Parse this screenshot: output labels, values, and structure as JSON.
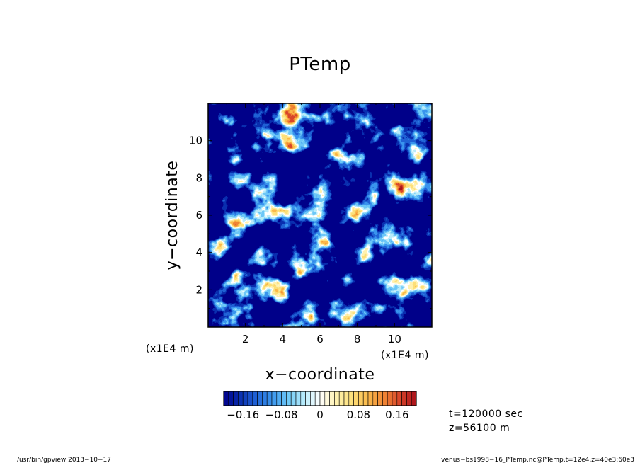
{
  "chart_data": {
    "type": "heatmap",
    "title": "PTemp",
    "xlabel": "x−coordinate",
    "ylabel": "y−coordinate",
    "x_unit": "(x1E4 m)",
    "y_unit": "(x1E4 m)",
    "xlim": [
      0,
      12
    ],
    "ylim": [
      0,
      12
    ],
    "x_ticks": [
      2,
      4,
      6,
      8,
      10
    ],
    "y_ticks": [
      2,
      4,
      6,
      8,
      10
    ],
    "x_tick_labels": [
      "2",
      "4",
      "6",
      "8",
      "10"
    ],
    "y_tick_labels": [
      "2",
      "4",
      "6",
      "8",
      "10"
    ],
    "colorbar": {
      "range": [
        -0.2,
        0.2
      ],
      "ticks": [
        -0.16,
        -0.08,
        0,
        0.08,
        0.16
      ],
      "tick_labels": [
        "−0.16",
        "−0.08",
        "0",
        "0.08",
        "0.16"
      ],
      "colors": [
        "#00008a",
        "#0a2fb0",
        "#1f62d6",
        "#3a95ee",
        "#6cc8f7",
        "#b8ecfb",
        "#ffffff",
        "#fff2b0",
        "#fde07a",
        "#fbb94a",
        "#f08534",
        "#d8452a",
        "#a80f1a"
      ]
    }
  },
  "info": {
    "time": "t=120000 sec",
    "height": "z=56100 m"
  },
  "footer": {
    "left": "/usr/bin/gpview   2013−10−17",
    "right": "venus−bs1998−16_PTemp.nc@PTemp,t=12e4,z=40e3:60e3"
  }
}
